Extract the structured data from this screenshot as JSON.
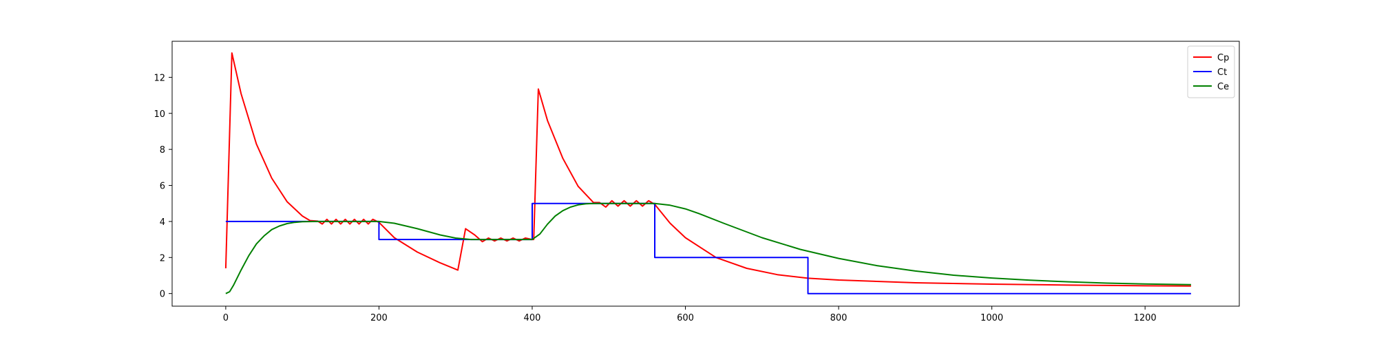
{
  "chart_data": {
    "type": "line",
    "title": "",
    "xlabel": "",
    "ylabel": "",
    "xlim": [
      -70,
      1323
    ],
    "ylim": [
      -0.7,
      14.0
    ],
    "x_ticks": [
      0,
      200,
      400,
      600,
      800,
      1000,
      1200
    ],
    "y_ticks": [
      0,
      2,
      4,
      6,
      8,
      10,
      12
    ],
    "grid": false,
    "legend_position": "top-right",
    "series": [
      {
        "name": "Cp",
        "color": "#ff0000",
        "points": [
          [
            0,
            1.4
          ],
          [
            8,
            13.35
          ],
          [
            20,
            11.1
          ],
          [
            40,
            8.3
          ],
          [
            60,
            6.4
          ],
          [
            80,
            5.1
          ],
          [
            100,
            4.3
          ],
          [
            110,
            4.05
          ],
          [
            120,
            4.02
          ],
          [
            126,
            3.86
          ],
          [
            132,
            4.12
          ],
          [
            138,
            3.86
          ],
          [
            144,
            4.12
          ],
          [
            150,
            3.86
          ],
          [
            156,
            4.12
          ],
          [
            162,
            3.86
          ],
          [
            168,
            4.12
          ],
          [
            174,
            3.86
          ],
          [
            180,
            4.12
          ],
          [
            186,
            3.86
          ],
          [
            192,
            4.12
          ],
          [
            200,
            3.95
          ],
          [
            220,
            3.1
          ],
          [
            250,
            2.3
          ],
          [
            280,
            1.7
          ],
          [
            303,
            1.3
          ],
          [
            313,
            3.6
          ],
          [
            325,
            3.25
          ],
          [
            335,
            2.88
          ],
          [
            343,
            3.08
          ],
          [
            351,
            2.92
          ],
          [
            359,
            3.08
          ],
          [
            367,
            2.92
          ],
          [
            375,
            3.08
          ],
          [
            383,
            2.92
          ],
          [
            391,
            3.08
          ],
          [
            400,
            3.0
          ],
          [
            402,
            3.0
          ],
          [
            408,
            11.35
          ],
          [
            420,
            9.6
          ],
          [
            440,
            7.5
          ],
          [
            460,
            5.95
          ],
          [
            480,
            5.05
          ],
          [
            488,
            5.05
          ],
          [
            496,
            4.8
          ],
          [
            504,
            5.15
          ],
          [
            512,
            4.85
          ],
          [
            520,
            5.15
          ],
          [
            528,
            4.85
          ],
          [
            536,
            5.15
          ],
          [
            544,
            4.85
          ],
          [
            552,
            5.15
          ],
          [
            560,
            4.95
          ],
          [
            580,
            3.9
          ],
          [
            600,
            3.1
          ],
          [
            640,
            2.0
          ],
          [
            680,
            1.4
          ],
          [
            720,
            1.05
          ],
          [
            760,
            0.85
          ],
          [
            800,
            0.75
          ],
          [
            900,
            0.6
          ],
          [
            1000,
            0.52
          ],
          [
            1100,
            0.47
          ],
          [
            1200,
            0.43
          ],
          [
            1260,
            0.42
          ]
        ]
      },
      {
        "name": "Ct",
        "color": "#0000ff",
        "points": [
          [
            0,
            4
          ],
          [
            200,
            4
          ],
          [
            200,
            3
          ],
          [
            400,
            3
          ],
          [
            400,
            5
          ],
          [
            560,
            5
          ],
          [
            560,
            2
          ],
          [
            760,
            2
          ],
          [
            760,
            0
          ],
          [
            1260,
            0
          ]
        ]
      },
      {
        "name": "Ce",
        "color": "#008000",
        "points": [
          [
            0,
            0
          ],
          [
            5,
            0.1
          ],
          [
            10,
            0.45
          ],
          [
            20,
            1.3
          ],
          [
            30,
            2.1
          ],
          [
            40,
            2.75
          ],
          [
            50,
            3.2
          ],
          [
            60,
            3.55
          ],
          [
            70,
            3.75
          ],
          [
            80,
            3.88
          ],
          [
            90,
            3.95
          ],
          [
            100,
            3.99
          ],
          [
            120,
            4.0
          ],
          [
            200,
            4.0
          ],
          [
            220,
            3.9
          ],
          [
            250,
            3.6
          ],
          [
            280,
            3.25
          ],
          [
            300,
            3.08
          ],
          [
            320,
            3.0
          ],
          [
            400,
            3.0
          ],
          [
            410,
            3.3
          ],
          [
            420,
            3.85
          ],
          [
            430,
            4.3
          ],
          [
            440,
            4.6
          ],
          [
            450,
            4.8
          ],
          [
            460,
            4.92
          ],
          [
            470,
            4.98
          ],
          [
            480,
            5.0
          ],
          [
            560,
            5.0
          ],
          [
            580,
            4.9
          ],
          [
            600,
            4.7
          ],
          [
            620,
            4.4
          ],
          [
            650,
            3.9
          ],
          [
            700,
            3.1
          ],
          [
            750,
            2.45
          ],
          [
            800,
            1.95
          ],
          [
            850,
            1.55
          ],
          [
            900,
            1.25
          ],
          [
            950,
            1.02
          ],
          [
            1000,
            0.86
          ],
          [
            1050,
            0.74
          ],
          [
            1100,
            0.65
          ],
          [
            1150,
            0.58
          ],
          [
            1200,
            0.53
          ],
          [
            1260,
            0.49
          ]
        ]
      }
    ]
  }
}
